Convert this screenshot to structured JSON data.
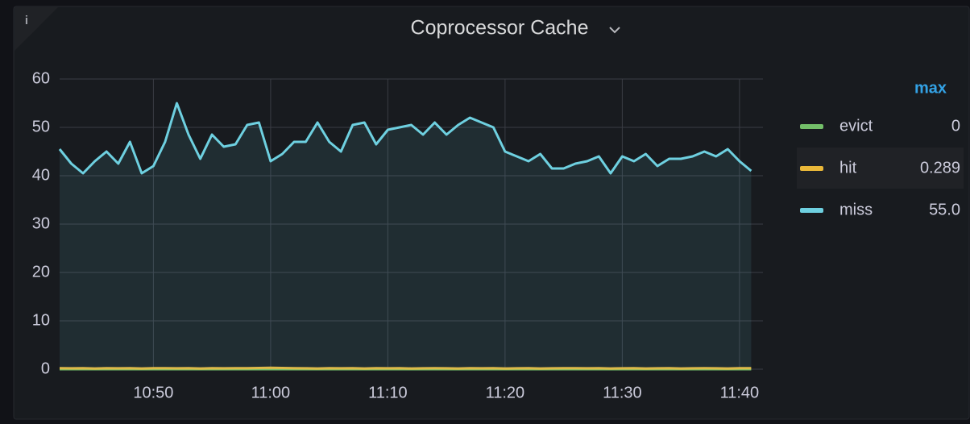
{
  "chart_data": {
    "type": "line",
    "title": "Coprocessor Cache",
    "x": [
      "10:42",
      "10:43",
      "10:44",
      "10:45",
      "10:46",
      "10:47",
      "10:48",
      "10:49",
      "10:50",
      "10:51",
      "10:52",
      "10:53",
      "10:54",
      "10:55",
      "10:56",
      "10:57",
      "10:58",
      "10:59",
      "11:00",
      "11:01",
      "11:02",
      "11:03",
      "11:04",
      "11:05",
      "11:06",
      "11:07",
      "11:08",
      "11:09",
      "11:10",
      "11:11",
      "11:12",
      "11:13",
      "11:14",
      "11:15",
      "11:16",
      "11:17",
      "11:18",
      "11:19",
      "11:20",
      "11:21",
      "11:22",
      "11:23",
      "11:24",
      "11:25",
      "11:26",
      "11:27",
      "11:28",
      "11:29",
      "11:30",
      "11:31",
      "11:32",
      "11:33",
      "11:34",
      "11:35",
      "11:36",
      "11:37",
      "11:38",
      "11:39",
      "11:40",
      "11:41"
    ],
    "series": [
      {
        "name": "evict",
        "color": "#73bf69",
        "max": 0,
        "values": [
          0,
          0,
          0,
          0,
          0,
          0,
          0,
          0,
          0,
          0,
          0,
          0,
          0,
          0,
          0,
          0,
          0,
          0,
          0,
          0,
          0,
          0,
          0,
          0,
          0,
          0,
          0,
          0,
          0,
          0,
          0,
          0,
          0,
          0,
          0,
          0,
          0,
          0,
          0,
          0,
          0,
          0,
          0,
          0,
          0,
          0,
          0,
          0,
          0,
          0,
          0,
          0,
          0,
          0,
          0,
          0,
          0,
          0,
          0,
          0
        ]
      },
      {
        "name": "hit",
        "color": "#eab839",
        "max": 0.289,
        "values": [
          0.2,
          0.18,
          0.2,
          0.15,
          0.2,
          0.18,
          0.2,
          0.15,
          0.2,
          0.22,
          0.18,
          0.2,
          0.15,
          0.2,
          0.18,
          0.2,
          0.22,
          0.25,
          0.289,
          0.25,
          0.2,
          0.18,
          0.15,
          0.2,
          0.18,
          0.2,
          0.15,
          0.2,
          0.18,
          0.2,
          0.15,
          0.18,
          0.2,
          0.18,
          0.15,
          0.2,
          0.18,
          0.2,
          0.15,
          0.18,
          0.2,
          0.15,
          0.18,
          0.2,
          0.22,
          0.18,
          0.2,
          0.15,
          0.18,
          0.2,
          0.15,
          0.18,
          0.2,
          0.15,
          0.18,
          0.2,
          0.18,
          0.15,
          0.22,
          0.2
        ]
      },
      {
        "name": "miss",
        "color": "#6ed0e0",
        "max": 55,
        "max_label": "55.0",
        "values": [
          45.5,
          42.5,
          40.5,
          43,
          45,
          42.5,
          47,
          40.5,
          42,
          47,
          55,
          48.5,
          43.5,
          48.5,
          46,
          46.5,
          50.5,
          51,
          43,
          44.5,
          47,
          47,
          51,
          47,
          45,
          50.5,
          51,
          46.5,
          49.5,
          50,
          50.5,
          48.5,
          51,
          48.5,
          50.5,
          52,
          51,
          50,
          45,
          44,
          43,
          44.5,
          41.5,
          41.5,
          42.5,
          43,
          44,
          40.5,
          44,
          43,
          44.5,
          42,
          43.5,
          43.5,
          44,
          45,
          44,
          45.5,
          43,
          41
        ]
      }
    ],
    "legend_header": "max",
    "xlim": [
      "10:42",
      "11:42"
    ],
    "xticks": [
      "10:50",
      "11:00",
      "11:10",
      "11:20",
      "11:30",
      "11:40"
    ],
    "ylim": [
      0,
      60
    ],
    "yticks": [
      0,
      10,
      20,
      30,
      40,
      50,
      60
    ],
    "grid": true
  }
}
